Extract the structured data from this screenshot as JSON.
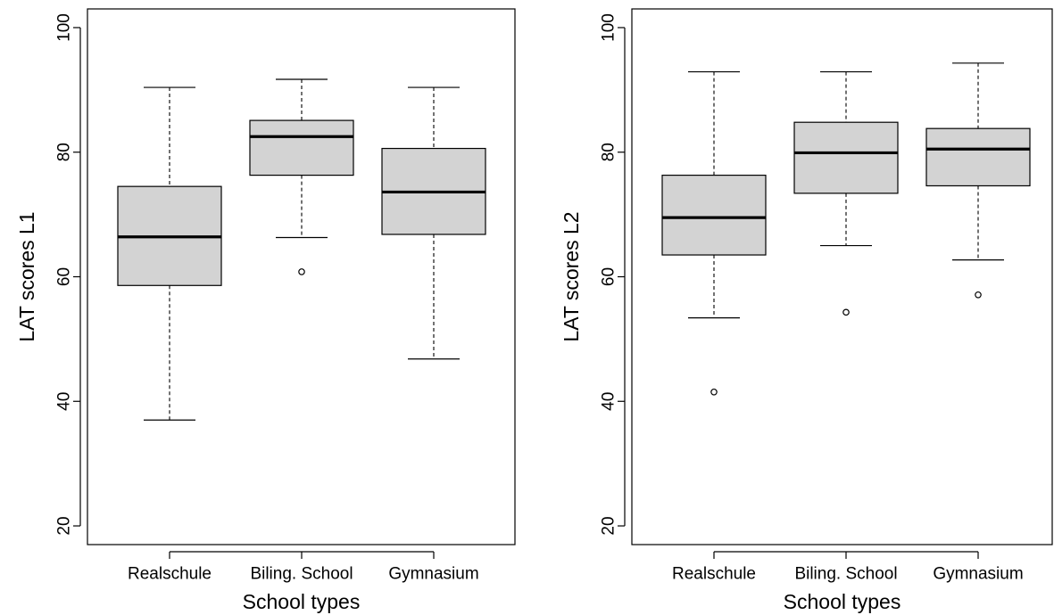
{
  "chart_data": [
    {
      "type": "boxplot",
      "xlabel": "School types",
      "ylabel": "LAT scores L1",
      "ylim": [
        17,
        103
      ],
      "yticks": [
        20,
        40,
        60,
        80,
        100
      ],
      "tick_labels": [
        "20",
        "40",
        "60",
        "80",
        "100"
      ],
      "grid": false,
      "categories": [
        "Realschule",
        "Biling. School",
        "Gymnasium"
      ],
      "boxes": [
        {
          "min": 37,
          "q1": 58.6,
          "median": 66.4,
          "q3": 74.5,
          "max": 90.4,
          "outliers": []
        },
        {
          "min": 66.3,
          "q1": 76.3,
          "median": 82.5,
          "q3": 85.1,
          "max": 91.7,
          "outliers": [
            60.8
          ]
        },
        {
          "min": 46.8,
          "q1": 66.8,
          "median": 73.6,
          "q3": 80.6,
          "max": 90.4,
          "outliers": []
        }
      ]
    },
    {
      "type": "boxplot",
      "xlabel": "School types",
      "ylabel": "LAT scores L2",
      "ylim": [
        17,
        103
      ],
      "yticks": [
        20,
        40,
        60,
        80,
        100
      ],
      "tick_labels": [
        "20",
        "40",
        "60",
        "80",
        "100"
      ],
      "grid": false,
      "categories": [
        "Realschule",
        "Biling. School",
        "Gymnasium"
      ],
      "boxes": [
        {
          "min": 53.4,
          "q1": 63.5,
          "median": 69.5,
          "q3": 76.3,
          "max": 92.9,
          "outliers": [
            41.5
          ]
        },
        {
          "min": 65,
          "q1": 73.4,
          "median": 79.9,
          "q3": 84.8,
          "max": 92.9,
          "outliers": [
            54.3
          ]
        },
        {
          "min": 62.7,
          "q1": 74.6,
          "median": 80.5,
          "q3": 83.8,
          "max": 94.3,
          "outliers": [
            57.1
          ]
        }
      ]
    }
  ]
}
